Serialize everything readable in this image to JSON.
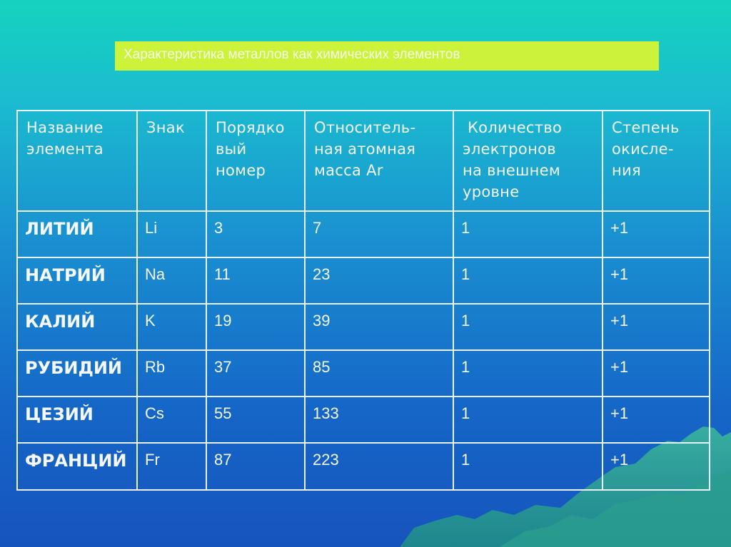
{
  "title": "Характеристика металлов как химических элементов",
  "table": {
    "headers": [
      [
        "Название",
        "элемента"
      ],
      [
        "Знак"
      ],
      [
        "Порядко",
        "вый",
        "номер"
      ],
      [
        "Относитель-",
        "ная атомная",
        "масса Ar"
      ],
      [
        " Количество",
        "электронов",
        "на внешнем",
        "уровне"
      ],
      [
        "Степень",
        "окисле-",
        "ния"
      ]
    ],
    "rows": [
      [
        "ЛИТИЙ",
        "Li",
        "3",
        "7",
        "1",
        "+1"
      ],
      [
        "НАТРИЙ",
        "Na",
        "11",
        "23",
        "1",
        "+1"
      ],
      [
        "КАЛИЙ",
        "K",
        "19",
        "39",
        "1",
        "+1"
      ],
      [
        "РУБИДИЙ",
        "Rb",
        "37",
        "85",
        "1",
        "+1"
      ],
      [
        "ЦЕЗИЙ",
        "Cs",
        "55",
        "133",
        "1",
        "+1"
      ],
      [
        "ФРАНЦИЙ",
        "Fr",
        "87",
        "223",
        "1",
        "+1"
      ]
    ]
  },
  "colors": {
    "background_top": "#15d3bd",
    "background_bottom": "#1654bd",
    "title_bar": "#ccf23a",
    "table_border": "#e8f1f7",
    "text": "#f4f8fb",
    "hills": "#2aa28f"
  }
}
